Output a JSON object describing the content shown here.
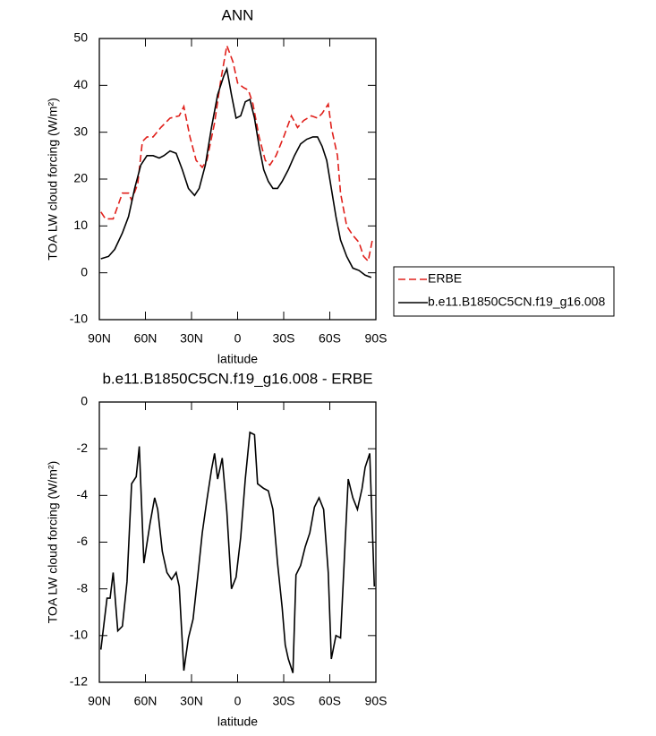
{
  "chart_data": [
    {
      "type": "line",
      "title": "ANN",
      "x_label": "latitude",
      "y_label": "TOA LW cloud forcing (W/m²)",
      "xlim": [
        90,
        -90
      ],
      "xticks": [
        {
          "value": 90,
          "label": "90N"
        },
        {
          "value": 60,
          "label": "60N"
        },
        {
          "value": 30,
          "label": "30N"
        },
        0,
        {
          "value": -30,
          "label": "30S"
        },
        {
          "value": -60,
          "label": "60S"
        },
        {
          "value": -90,
          "label": "90S"
        }
      ],
      "ylim": [
        -10,
        50
      ],
      "yticks": [
        -10,
        0,
        10,
        20,
        30,
        40,
        50
      ],
      "legend": "right",
      "series": [
        {
          "name": "ERBE",
          "color": "#e0201b",
          "line_style": "dashed",
          "x": [
            89,
            86,
            81,
            75,
            71,
            69,
            65,
            62,
            59,
            55,
            50,
            44,
            38,
            35,
            31,
            27,
            23,
            20,
            15,
            11,
            7,
            3,
            0,
            -4,
            -7,
            -10,
            -14,
            -18,
            -21,
            -25,
            -30,
            -35,
            -39,
            -43,
            -48,
            -52,
            -55,
            -59,
            -61,
            -65,
            -67,
            -71,
            -75,
            -79,
            -82,
            -85,
            -88
          ],
          "values": [
            13,
            11.5,
            11.5,
            17,
            17,
            15.5,
            19,
            28,
            29,
            29,
            31,
            33,
            33.5,
            35.5,
            29,
            24,
            22.5,
            24,
            32,
            41,
            48.5,
            45,
            40.5,
            39.5,
            39,
            36,
            29,
            24,
            23,
            25,
            29,
            33.5,
            31,
            32.5,
            33.5,
            33,
            34,
            36,
            31,
            25,
            17,
            10,
            8,
            6.5,
            3.5,
            2.5,
            7.5
          ]
        },
        {
          "name": "b.e11.B1850C5CN.f19_g16.008",
          "color": "#000000",
          "line_style": "solid",
          "x": [
            89,
            84,
            80,
            75,
            71,
            67,
            63,
            59,
            55,
            51,
            48,
            44,
            40,
            36,
            32,
            28,
            25,
            21,
            17,
            13,
            9,
            7,
            4,
            1,
            -2,
            -5,
            -8,
            -11,
            -14,
            -17,
            -20,
            -23,
            -26,
            -29,
            -33,
            -37,
            -41,
            -45,
            -49,
            -52,
            -55,
            -58,
            -61,
            -64,
            -67,
            -71,
            -75,
            -79,
            -83,
            -87
          ],
          "values": [
            3,
            3.5,
            5,
            8.5,
            12,
            18,
            23,
            25,
            25,
            24.5,
            25,
            26,
            25.5,
            22,
            18,
            16.5,
            18,
            23,
            31,
            38,
            42,
            43.5,
            38,
            33,
            33.5,
            36.5,
            37,
            33,
            27,
            22,
            19.5,
            18,
            18,
            19.5,
            22,
            25,
            27.5,
            28.5,
            29,
            29,
            27,
            24,
            18,
            12,
            7,
            3.5,
            1,
            0.5,
            -0.5,
            -1
          ]
        }
      ]
    },
    {
      "type": "line",
      "title": "b.e11.B1850C5CN.f19_g16.008 - ERBE",
      "x_label": "latitude",
      "y_label": "TOA LW cloud forcing (W/m²)",
      "xlim": [
        90,
        -90
      ],
      "xticks": [
        {
          "value": 90,
          "label": "90N"
        },
        {
          "value": 60,
          "label": "60N"
        },
        {
          "value": 30,
          "label": "30N"
        },
        0,
        {
          "value": -30,
          "label": "30S"
        },
        {
          "value": -60,
          "label": "60S"
        },
        {
          "value": -90,
          "label": "90S"
        }
      ],
      "ylim": [
        -12,
        0
      ],
      "yticks": [
        -12,
        -10,
        -8,
        -6,
        -4,
        -2,
        0
      ],
      "series": [
        {
          "color": "#000000",
          "line_style": "solid",
          "x": [
            89,
            85,
            83,
            81,
            78,
            75,
            72,
            69,
            66,
            64,
            61,
            57,
            54,
            52,
            49,
            46,
            43,
            40,
            38,
            35,
            32,
            29,
            26,
            23,
            20,
            17,
            15,
            13,
            10,
            7,
            4,
            1,
            -2,
            -5,
            -8,
            -11,
            -13,
            -17,
            -20,
            -23,
            -26,
            -29,
            -31,
            -33,
            -36,
            -38,
            -41,
            -44,
            -47,
            -50,
            -53,
            -56,
            -59,
            -61,
            -64,
            -67,
            -70,
            -72,
            -75,
            -78,
            -81,
            -83,
            -86,
            -89
          ],
          "values": [
            -10.6,
            -8.4,
            -8.4,
            -7.3,
            -9.8,
            -9.6,
            -7.7,
            -3.5,
            -3.2,
            -1.9,
            -6.9,
            -5.2,
            -4.1,
            -4.6,
            -6.4,
            -7.3,
            -7.6,
            -7.3,
            -7.9,
            -11.5,
            -10.1,
            -9.3,
            -7.5,
            -5.6,
            -4.2,
            -2.9,
            -2.2,
            -3.3,
            -2.4,
            -4.7,
            -8.0,
            -7.5,
            -5.8,
            -3.3,
            -1.3,
            -1.4,
            -3.5,
            -3.7,
            -3.8,
            -4.6,
            -6.9,
            -8.8,
            -10.4,
            -11.0,
            -11.6,
            -7.4,
            -7.0,
            -6.2,
            -5.6,
            -4.5,
            -4.1,
            -4.6,
            -7.3,
            -11.0,
            -10.0,
            -10.1,
            -6.0,
            -3.3,
            -4.1,
            -4.6,
            -3.7,
            -2.8,
            -2.2,
            -7.9
          ]
        }
      ]
    }
  ]
}
